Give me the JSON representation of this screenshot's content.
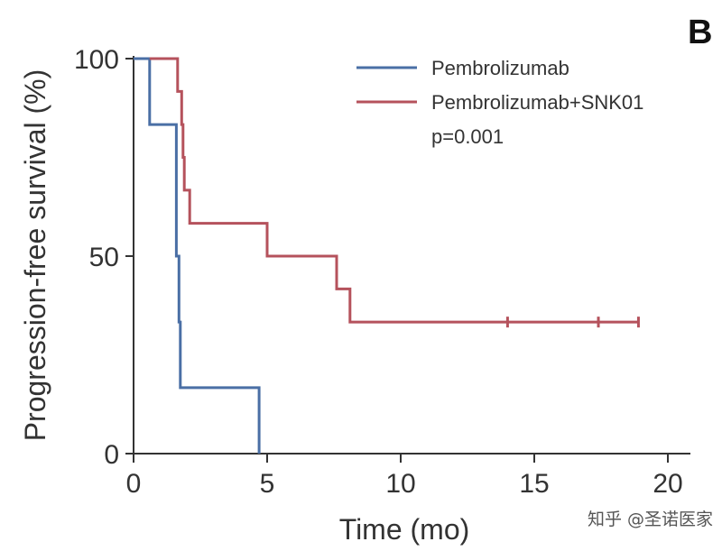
{
  "chart_data": {
    "type": "line",
    "subtype": "kaplan-meier-step",
    "panel_label": "B",
    "xlabel": "Time (mo)",
    "ylabel": "Progression-free survival (%)",
    "xlim": [
      0,
      20
    ],
    "ylim": [
      0,
      100
    ],
    "xticks": [
      0,
      5,
      10,
      15,
      20
    ],
    "xtick_labels": [
      "0",
      "5",
      "10",
      "15",
      "20"
    ],
    "yticks": [
      0,
      50,
      100
    ],
    "ytick_labels": [
      "0",
      "50",
      "100"
    ],
    "grid": false,
    "legend_position": "top-right",
    "annotation": "p=0.001",
    "series": [
      {
        "name": "Pembrolizumab",
        "color": "#4a6fa5",
        "points": [
          [
            0,
            100
          ],
          [
            0.6,
            100
          ],
          [
            0.6,
            83.3
          ],
          [
            1.6,
            83.3
          ],
          [
            1.6,
            50
          ],
          [
            1.7,
            50
          ],
          [
            1.7,
            33.3
          ],
          [
            1.75,
            33.3
          ],
          [
            1.75,
            16.7
          ],
          [
            4.7,
            16.7
          ],
          [
            4.7,
            0
          ]
        ],
        "censor": []
      },
      {
        "name": "Pembrolizumab+SNK01",
        "color": "#b5525c",
        "points": [
          [
            0.6,
            100
          ],
          [
            1.65,
            100
          ],
          [
            1.65,
            91.7
          ],
          [
            1.8,
            91.7
          ],
          [
            1.8,
            83.3
          ],
          [
            1.85,
            83.3
          ],
          [
            1.85,
            75
          ],
          [
            1.9,
            75
          ],
          [
            1.9,
            66.7
          ],
          [
            2.1,
            66.7
          ],
          [
            2.1,
            58.3
          ],
          [
            5,
            58.3
          ],
          [
            5,
            50
          ],
          [
            7.6,
            50
          ],
          [
            7.6,
            41.7
          ],
          [
            8.1,
            41.7
          ],
          [
            8.1,
            33.3
          ],
          [
            18.9,
            33.3
          ]
        ],
        "censor": [
          [
            14,
            33.3
          ],
          [
            17.4,
            33.3
          ],
          [
            18.9,
            33.3
          ]
        ]
      }
    ]
  },
  "watermark": "知乎 @圣诺医家"
}
